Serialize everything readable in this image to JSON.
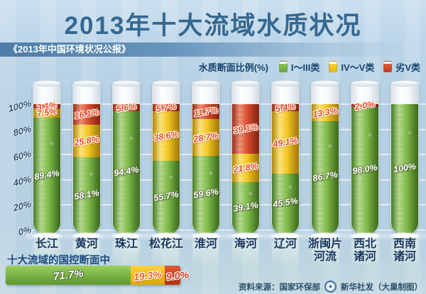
{
  "title": "2013年十大流域水质状况",
  "subtitle": "《2013年中国环境状况公报》",
  "legend": {
    "caption": "水质断面比例(%)",
    "items": [
      {
        "key": "green",
        "label": "I～III类",
        "color": "#76b043"
      },
      {
        "key": "yellow",
        "label": "IV～V类",
        "color": "#f3c31c"
      },
      {
        "key": "red",
        "label": "劣V类",
        "color": "#d64527"
      }
    ]
  },
  "y_axis": {
    "ticks": [
      {
        "label": "100%",
        "value": 100
      },
      {
        "label": "80%",
        "value": 80
      },
      {
        "label": "60%",
        "value": 60
      },
      {
        "label": "40%",
        "value": 40
      },
      {
        "label": "20%",
        "value": 20
      },
      {
        "label": "0%",
        "value": 0
      }
    ]
  },
  "chart_data": {
    "type": "bar",
    "variant": "stacked-vertical-test-tubes",
    "unit": "%",
    "ylim": [
      0,
      100
    ],
    "grid": true,
    "categories": [
      "长江",
      "黄河",
      "珠江",
      "松花江",
      "淮河",
      "海河",
      "辽河",
      "浙闽片河流",
      "西北诸河",
      "西南诸河"
    ],
    "category_lines": [
      [
        "长江"
      ],
      [
        "黄河"
      ],
      [
        "珠江"
      ],
      [
        "松花江"
      ],
      [
        "淮河"
      ],
      [
        "海河"
      ],
      [
        "辽河"
      ],
      [
        "浙闽片",
        "河流"
      ],
      [
        "西北",
        "诸河"
      ],
      [
        "西南",
        "诸河"
      ]
    ],
    "series": [
      {
        "key": "green",
        "name": "I～III类",
        "values": [
          89.4,
          58.1,
          94.4,
          55.7,
          59.6,
          39.1,
          45.5,
          86.7,
          98.0,
          100
        ],
        "labels": [
          "89.4%",
          "58.1%",
          "94.4%",
          "55.7%",
          "59.6%",
          "39.1%",
          "45.5%",
          "86.7%",
          "98.0%",
          "100%"
        ]
      },
      {
        "key": "yellow",
        "name": "IV～V类",
        "values": [
          7.5,
          25.8,
          0,
          38.6,
          28.7,
          21.8,
          49.1,
          13.3,
          0,
          0
        ],
        "labels": [
          "7.5%",
          "25.8%",
          "",
          "38.6%",
          "28.7%",
          "21.8%",
          "49.1%",
          "13.3%",
          "",
          ""
        ]
      },
      {
        "key": "red",
        "name": "劣V类",
        "values": [
          3.1,
          16.1,
          5.6,
          5.7,
          11.7,
          39.1,
          5.4,
          0,
          2.0,
          0
        ],
        "labels": [
          "3.1%",
          "16.1%",
          "5.6%",
          "5.7%",
          "11.7%",
          "39.1%",
          "5.4%",
          "",
          "2.0%",
          ""
        ]
      }
    ]
  },
  "summary": {
    "title": "十大流域的国控断面中",
    "segments": [
      {
        "key": "green",
        "value": 71.7,
        "label": "71.7%"
      },
      {
        "key": "yellow",
        "value": 19.3,
        "label": "19.3%"
      },
      {
        "key": "red",
        "value": 9.0,
        "label": "9.0%"
      }
    ]
  },
  "source": {
    "label": "资料来源：国家环保部",
    "logo": "xinhua-news-agency-emblem",
    "credit": "新华社发（大巢制图）"
  }
}
